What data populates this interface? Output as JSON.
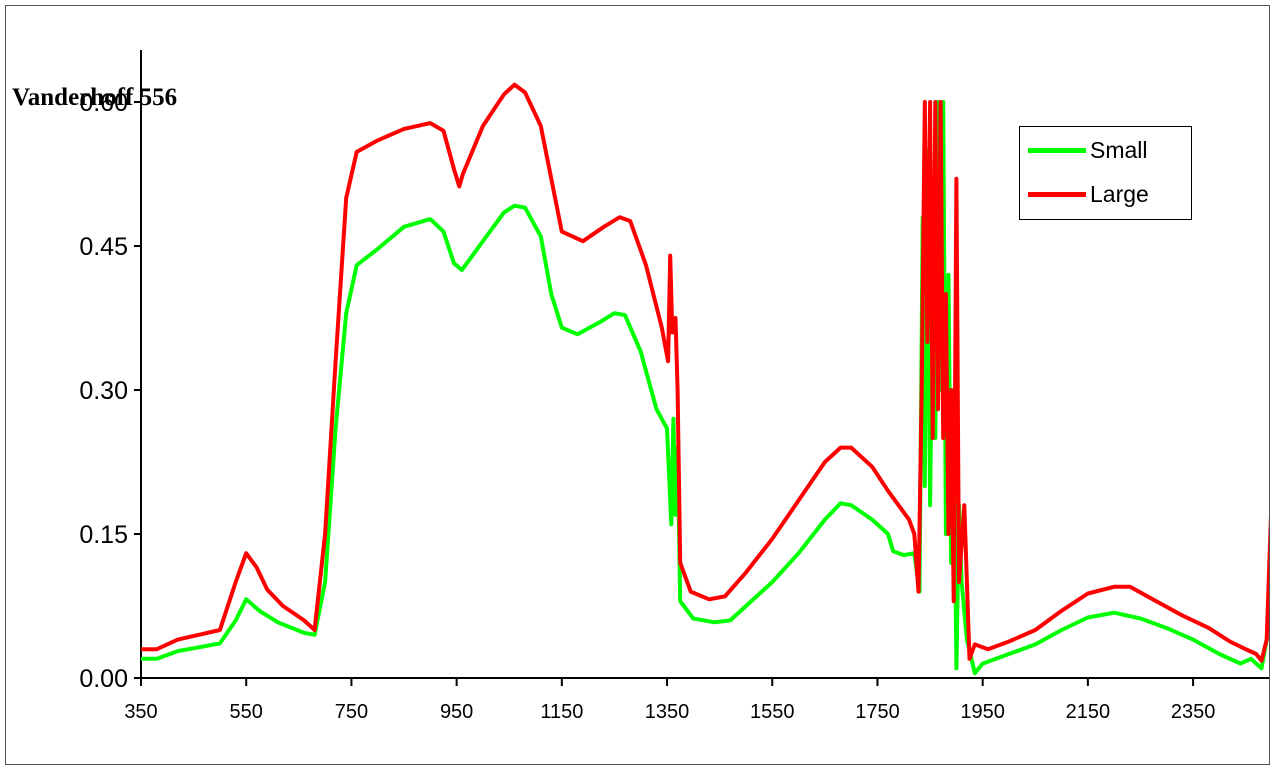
{
  "chart_data": {
    "type": "line",
    "title": "Vanderhoff 556",
    "xlabel": "",
    "ylabel": "",
    "xlim": [
      350,
      2500
    ],
    "ylim": [
      0,
      0.6
    ],
    "xticks": [
      350,
      550,
      750,
      950,
      1150,
      1350,
      1550,
      1750,
      1950,
      2150,
      2350
    ],
    "yticks": [
      "0.00",
      "0.15",
      "0.30",
      "0.45",
      "0.60"
    ],
    "grid": false,
    "legend_position": "top-right",
    "series": [
      {
        "name": "Small",
        "color": "#00ff00",
        "points": [
          [
            350,
            0.02
          ],
          [
            380,
            0.02
          ],
          [
            420,
            0.028
          ],
          [
            460,
            0.032
          ],
          [
            500,
            0.036
          ],
          [
            530,
            0.06
          ],
          [
            550,
            0.082
          ],
          [
            575,
            0.07
          ],
          [
            610,
            0.058
          ],
          [
            660,
            0.047
          ],
          [
            680,
            0.045
          ],
          [
            700,
            0.1
          ],
          [
            720,
            0.26
          ],
          [
            740,
            0.38
          ],
          [
            760,
            0.43
          ],
          [
            800,
            0.447
          ],
          [
            850,
            0.47
          ],
          [
            900,
            0.478
          ],
          [
            925,
            0.465
          ],
          [
            945,
            0.432
          ],
          [
            960,
            0.425
          ],
          [
            1000,
            0.455
          ],
          [
            1040,
            0.485
          ],
          [
            1060,
            0.492
          ],
          [
            1080,
            0.49
          ],
          [
            1110,
            0.46
          ],
          [
            1130,
            0.4
          ],
          [
            1150,
            0.365
          ],
          [
            1180,
            0.358
          ],
          [
            1220,
            0.37
          ],
          [
            1250,
            0.38
          ],
          [
            1270,
            0.378
          ],
          [
            1300,
            0.34
          ],
          [
            1330,
            0.28
          ],
          [
            1350,
            0.26
          ],
          [
            1358,
            0.16
          ],
          [
            1362,
            0.27
          ],
          [
            1366,
            0.17
          ],
          [
            1370,
            0.24
          ],
          [
            1375,
            0.08
          ],
          [
            1400,
            0.062
          ],
          [
            1440,
            0.058
          ],
          [
            1470,
            0.06
          ],
          [
            1500,
            0.075
          ],
          [
            1550,
            0.1
          ],
          [
            1600,
            0.13
          ],
          [
            1650,
            0.165
          ],
          [
            1680,
            0.182
          ],
          [
            1700,
            0.18
          ],
          [
            1740,
            0.165
          ],
          [
            1770,
            0.15
          ],
          [
            1780,
            0.132
          ],
          [
            1800,
            0.128
          ],
          [
            1820,
            0.13
          ],
          [
            1830,
            0.09
          ],
          [
            1836,
            0.48
          ],
          [
            1840,
            0.2
          ],
          [
            1845,
            0.55
          ],
          [
            1850,
            0.18
          ],
          [
            1855,
            0.42
          ],
          [
            1860,
            0.25
          ],
          [
            1865,
            0.6
          ],
          [
            1870,
            0.3
          ],
          [
            1875,
            0.6
          ],
          [
            1880,
            0.15
          ],
          [
            1885,
            0.42
          ],
          [
            1890,
            0.12
          ],
          [
            1895,
            0.3
          ],
          [
            1900,
            0.01
          ],
          [
            1905,
            0.18
          ],
          [
            1910,
            0.1
          ],
          [
            1920,
            0.04
          ],
          [
            1935,
            0.005
          ],
          [
            1950,
            0.015
          ],
          [
            2000,
            0.025
          ],
          [
            2050,
            0.035
          ],
          [
            2100,
            0.05
          ],
          [
            2150,
            0.063
          ],
          [
            2200,
            0.068
          ],
          [
            2250,
            0.062
          ],
          [
            2300,
            0.052
          ],
          [
            2350,
            0.04
          ],
          [
            2400,
            0.025
          ],
          [
            2440,
            0.015
          ],
          [
            2460,
            0.02
          ],
          [
            2480,
            0.01
          ],
          [
            2490,
            0.04
          ],
          [
            2500,
            0.14
          ]
        ]
      },
      {
        "name": "Large",
        "color": "#ff0000",
        "points": [
          [
            350,
            0.03
          ],
          [
            380,
            0.03
          ],
          [
            420,
            0.04
          ],
          [
            460,
            0.045
          ],
          [
            500,
            0.05
          ],
          [
            530,
            0.1
          ],
          [
            550,
            0.13
          ],
          [
            570,
            0.115
          ],
          [
            590,
            0.092
          ],
          [
            620,
            0.075
          ],
          [
            660,
            0.06
          ],
          [
            680,
            0.05
          ],
          [
            700,
            0.15
          ],
          [
            720,
            0.33
          ],
          [
            740,
            0.5
          ],
          [
            760,
            0.548
          ],
          [
            800,
            0.56
          ],
          [
            850,
            0.572
          ],
          [
            900,
            0.578
          ],
          [
            925,
            0.57
          ],
          [
            945,
            0.53
          ],
          [
            955,
            0.512
          ],
          [
            962,
            0.525
          ],
          [
            1000,
            0.575
          ],
          [
            1040,
            0.608
          ],
          [
            1060,
            0.618
          ],
          [
            1080,
            0.61
          ],
          [
            1110,
            0.575
          ],
          [
            1130,
            0.52
          ],
          [
            1150,
            0.465
          ],
          [
            1190,
            0.455
          ],
          [
            1230,
            0.47
          ],
          [
            1260,
            0.48
          ],
          [
            1280,
            0.476
          ],
          [
            1310,
            0.43
          ],
          [
            1340,
            0.365
          ],
          [
            1352,
            0.33
          ],
          [
            1356,
            0.44
          ],
          [
            1360,
            0.36
          ],
          [
            1366,
            0.375
          ],
          [
            1370,
            0.3
          ],
          [
            1375,
            0.12
          ],
          [
            1395,
            0.09
          ],
          [
            1430,
            0.082
          ],
          [
            1460,
            0.085
          ],
          [
            1500,
            0.11
          ],
          [
            1550,
            0.145
          ],
          [
            1600,
            0.185
          ],
          [
            1650,
            0.225
          ],
          [
            1680,
            0.24
          ],
          [
            1700,
            0.24
          ],
          [
            1740,
            0.22
          ],
          [
            1770,
            0.195
          ],
          [
            1790,
            0.18
          ],
          [
            1810,
            0.165
          ],
          [
            1820,
            0.15
          ],
          [
            1828,
            0.09
          ],
          [
            1834,
            0.3
          ],
          [
            1840,
            0.6
          ],
          [
            1845,
            0.35
          ],
          [
            1850,
            0.6
          ],
          [
            1855,
            0.25
          ],
          [
            1860,
            0.6
          ],
          [
            1865,
            0.28
          ],
          [
            1870,
            0.6
          ],
          [
            1875,
            0.25
          ],
          [
            1880,
            0.4
          ],
          [
            1885,
            0.15
          ],
          [
            1890,
            0.3
          ],
          [
            1895,
            0.08
          ],
          [
            1900,
            0.52
          ],
          [
            1905,
            0.1
          ],
          [
            1915,
            0.18
          ],
          [
            1925,
            0.02
          ],
          [
            1935,
            0.035
          ],
          [
            1960,
            0.03
          ],
          [
            2000,
            0.038
          ],
          [
            2050,
            0.05
          ],
          [
            2100,
            0.07
          ],
          [
            2150,
            0.088
          ],
          [
            2200,
            0.095
          ],
          [
            2230,
            0.095
          ],
          [
            2280,
            0.08
          ],
          [
            2330,
            0.065
          ],
          [
            2380,
            0.052
          ],
          [
            2420,
            0.038
          ],
          [
            2450,
            0.03
          ],
          [
            2470,
            0.025
          ],
          [
            2480,
            0.018
          ],
          [
            2490,
            0.04
          ],
          [
            2500,
            0.2
          ]
        ]
      }
    ]
  }
}
